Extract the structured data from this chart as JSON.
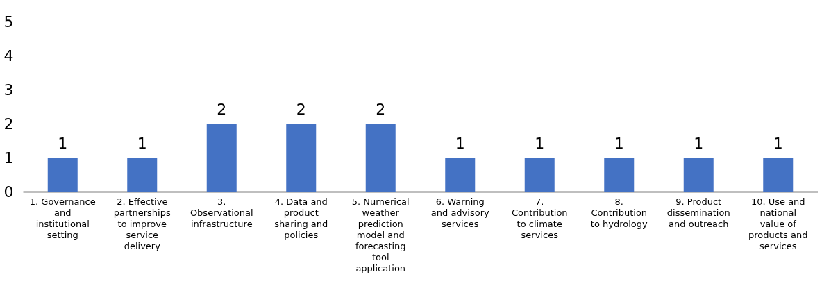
{
  "chart_data": {
    "type": "bar",
    "categories": [
      "1. Governance and institutional setting",
      "2. Effective partnerships to improve service delivery",
      "3. Observational infrastructure",
      "4. Data and product sharing and policies",
      "5. Numerical weather prediction model and forecasting tool application",
      "6. Warning and advisory services",
      "7. Contribution to climate services",
      "8. Contribution to hydrology",
      "9. Product dissemination and outreach",
      "10. Use and national value of products and services"
    ],
    "values": [
      1,
      1,
      2,
      2,
      2,
      1,
      1,
      1,
      1,
      1
    ],
    "color": "#4472c4",
    "ylim": [
      0,
      5
    ],
    "yticks": [
      0,
      1,
      2,
      3,
      4,
      5
    ],
    "grid": "y",
    "data_labels": true
  }
}
